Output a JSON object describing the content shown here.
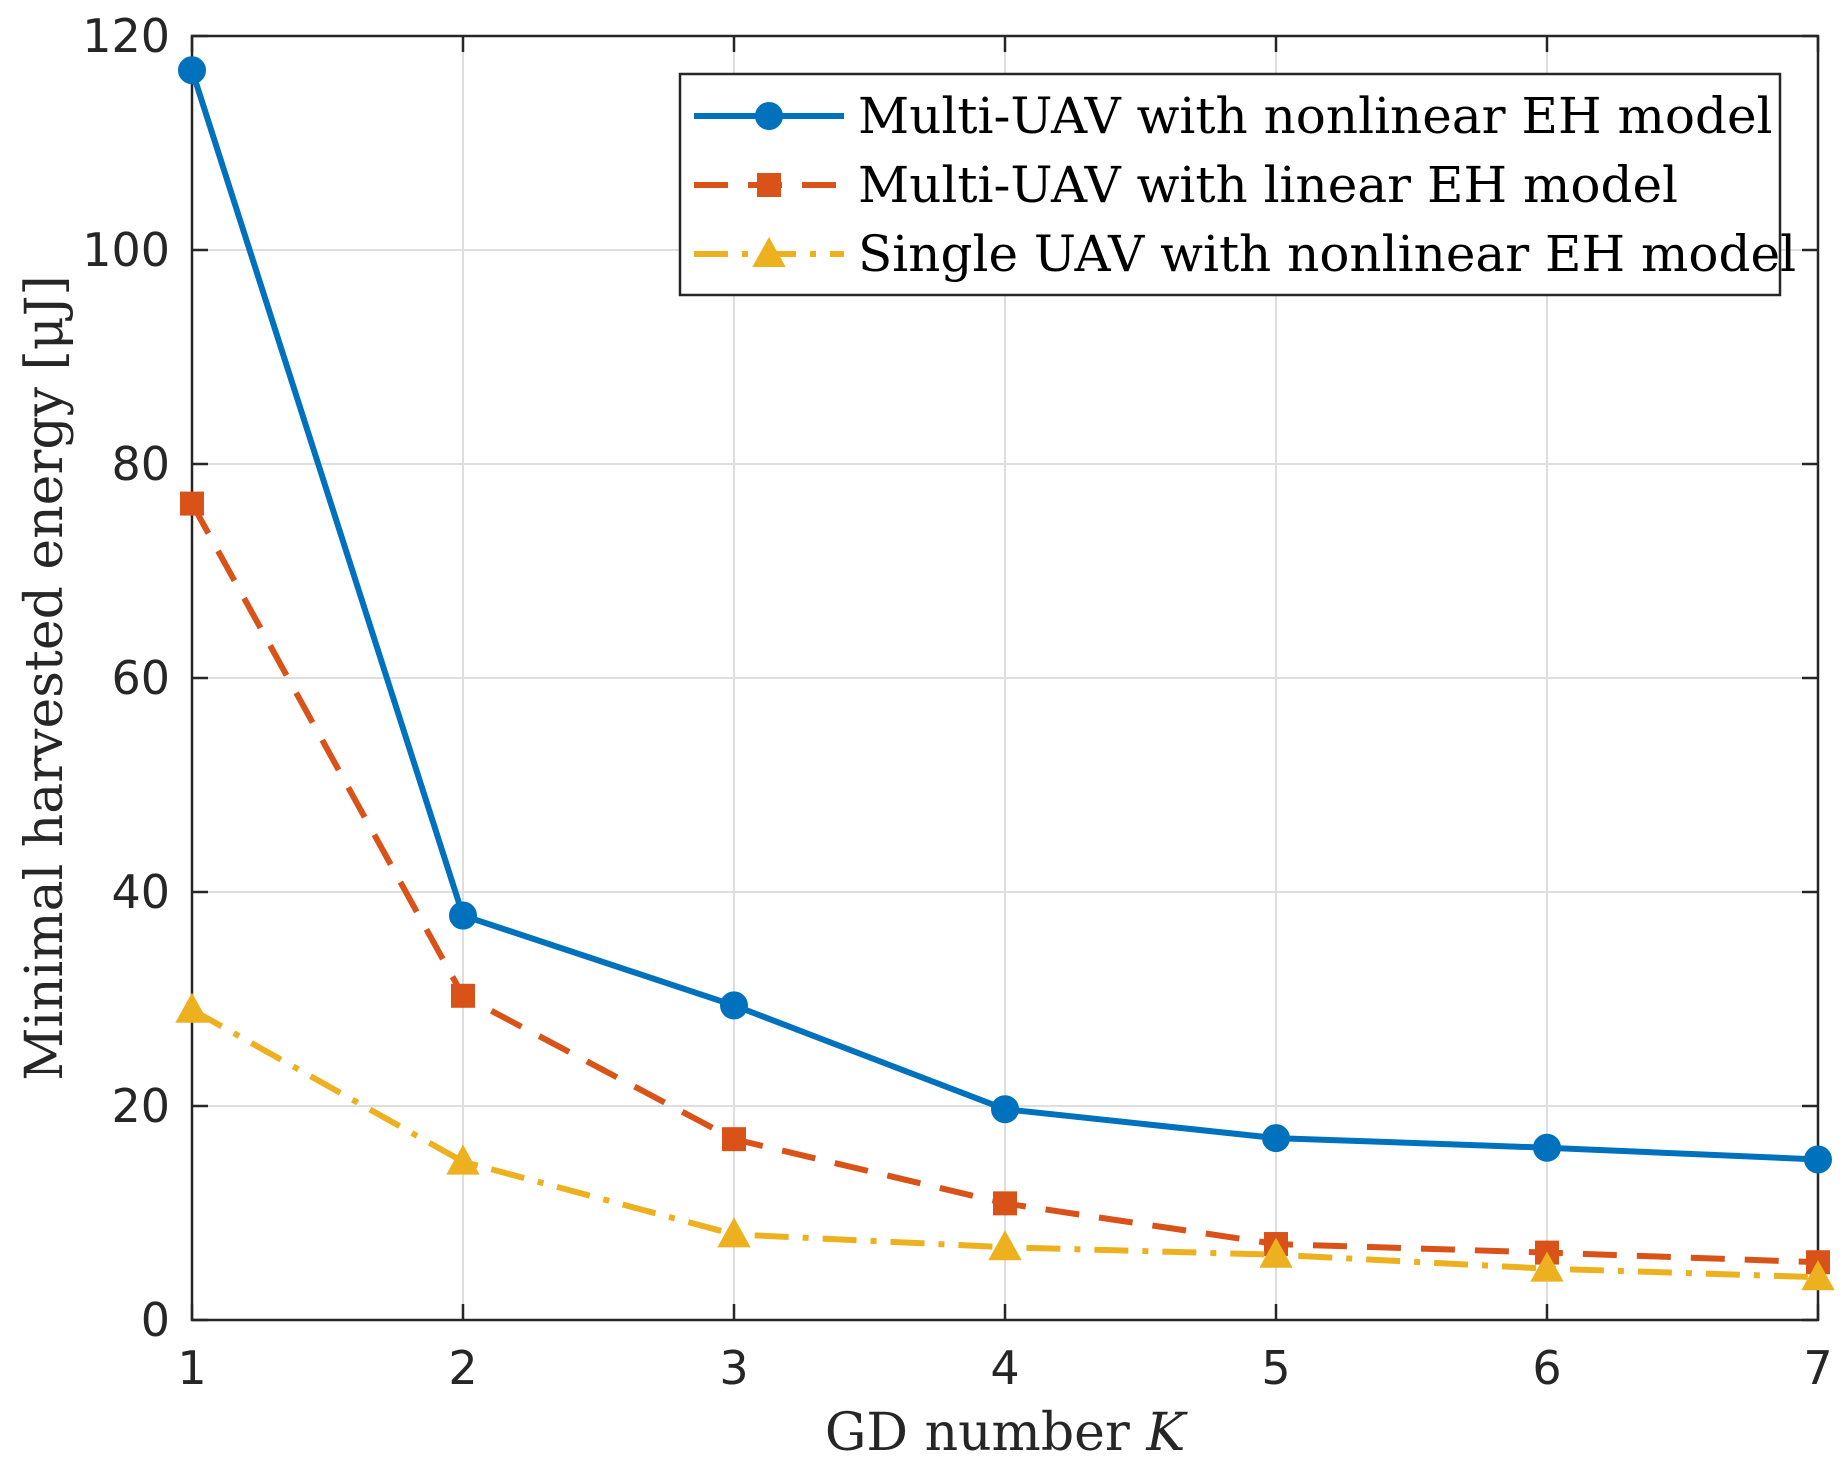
{
  "chart_data": {
    "type": "line",
    "title": "",
    "xlabel": "GD number",
    "xlabel_var": "K",
    "ylabel": "Minimal harvested energy [μJ]",
    "xlim": [
      1,
      7
    ],
    "ylim": [
      0,
      120
    ],
    "xticks": [
      1,
      2,
      3,
      4,
      5,
      6,
      7
    ],
    "yticks": [
      0,
      20,
      40,
      60,
      80,
      100,
      120
    ],
    "grid": true,
    "legend_position": "top-right",
    "x": [
      1,
      2,
      3,
      4,
      5,
      6,
      7
    ],
    "series": [
      {
        "name": "Multi-UAV with nonlinear EH model",
        "values": [
          116.8,
          37.8,
          29.4,
          19.7,
          17.0,
          16.1,
          15.0
        ],
        "color": "#0072BD",
        "line_style": "solid",
        "marker": "circle"
      },
      {
        "name": "Multi-UAV with linear EH model",
        "values": [
          76.3,
          30.3,
          16.9,
          10.9,
          7.1,
          6.3,
          5.4
        ],
        "color": "#D95319",
        "line_style": "dashed",
        "marker": "square"
      },
      {
        "name": "Single UAV with nonlinear EH model",
        "values": [
          29.0,
          14.8,
          8.0,
          6.8,
          6.1,
          4.8,
          4.0
        ],
        "color": "#EDB120",
        "line_style": "dash-dot",
        "marker": "triangle"
      }
    ]
  }
}
